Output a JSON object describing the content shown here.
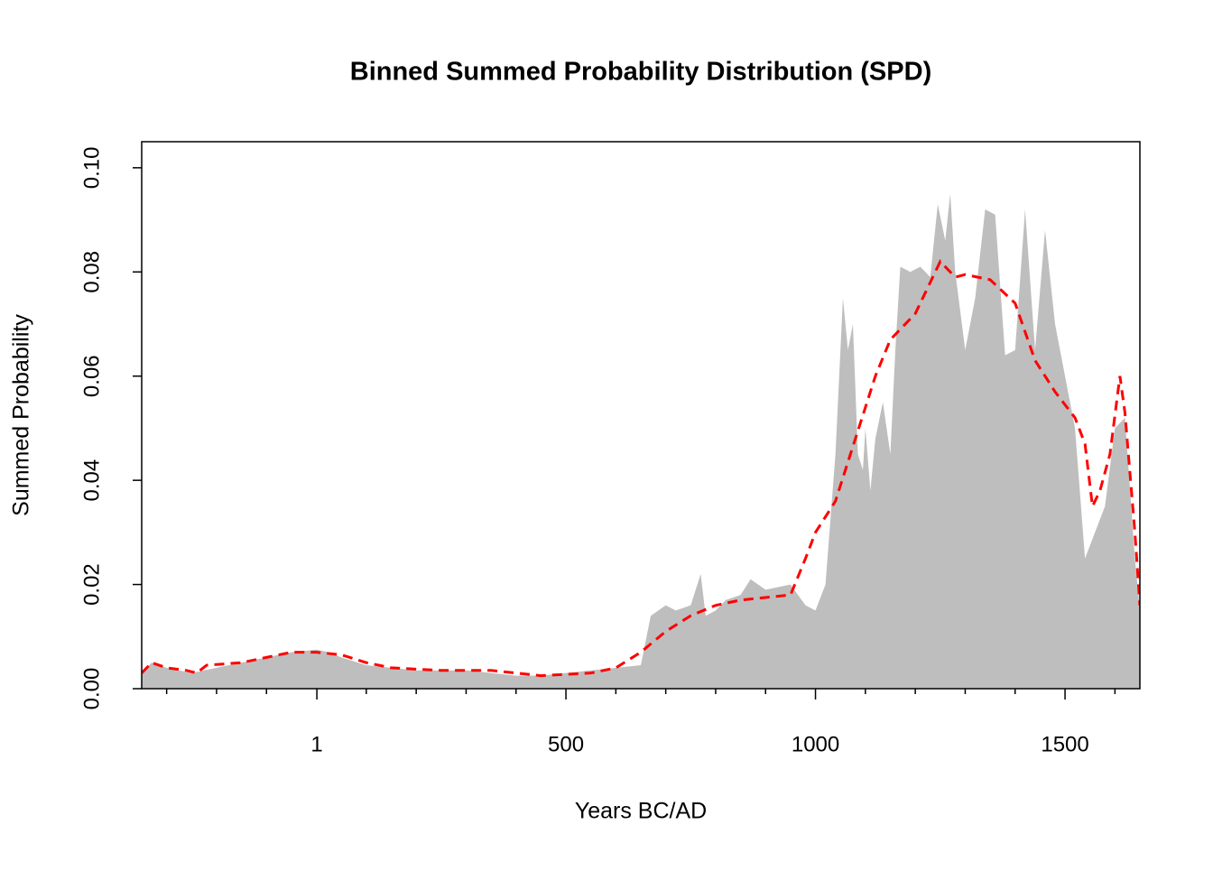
{
  "chart_data": {
    "type": "area",
    "title": "Binned Summed Probability Distribution (SPD)",
    "xlabel": "Years BC/AD",
    "ylabel": "Summed Probability",
    "xlim": [
      -350,
      1650
    ],
    "ylim": [
      0,
      0.105
    ],
    "xticks": [
      1,
      500,
      1000,
      1500
    ],
    "xminorticks": [
      -300,
      -200,
      -100,
      100,
      200,
      300,
      400,
      600,
      700,
      800,
      900,
      1100,
      1200,
      1300,
      1400,
      1600
    ],
    "yticks": [
      {
        "value": 0,
        "label": "0.00"
      },
      {
        "value": 0.02,
        "label": "0.02"
      },
      {
        "value": 0.04,
        "label": "0.04"
      },
      {
        "value": 0.06,
        "label": "0.06"
      },
      {
        "value": 0.08,
        "label": "0.08"
      },
      {
        "value": 0.1,
        "label": "0.10"
      }
    ],
    "series": [
      {
        "type": "area",
        "color": "#bebebe",
        "x": [
          -350,
          -330,
          -300,
          -250,
          -200,
          -150,
          -100,
          -50,
          0,
          25,
          50,
          100,
          150,
          200,
          250,
          300,
          350,
          400,
          450,
          500,
          550,
          600,
          650,
          670,
          700,
          720,
          750,
          770,
          780,
          800,
          820,
          850,
          870,
          900,
          950,
          980,
          1000,
          1020,
          1040,
          1055,
          1065,
          1075,
          1085,
          1095,
          1100,
          1110,
          1120,
          1135,
          1150,
          1160,
          1170,
          1190,
          1210,
          1230,
          1245,
          1260,
          1270,
          1280,
          1300,
          1320,
          1340,
          1360,
          1380,
          1400,
          1420,
          1440,
          1460,
          1480,
          1500,
          1520,
          1540,
          1560,
          1580,
          1600,
          1620,
          1640,
          1650
        ],
        "values": [
          0.003,
          0.005,
          0.004,
          0.003,
          0.004,
          0.005,
          0.006,
          0.007,
          0.0075,
          0.007,
          0.006,
          0.0045,
          0.004,
          0.0035,
          0.0035,
          0.0035,
          0.003,
          0.0025,
          0.0025,
          0.003,
          0.0035,
          0.004,
          0.0045,
          0.014,
          0.016,
          0.015,
          0.016,
          0.022,
          0.014,
          0.015,
          0.017,
          0.018,
          0.021,
          0.019,
          0.02,
          0.016,
          0.015,
          0.02,
          0.045,
          0.075,
          0.065,
          0.07,
          0.045,
          0.042,
          0.05,
          0.038,
          0.048,
          0.055,
          0.045,
          0.065,
          0.081,
          0.08,
          0.081,
          0.079,
          0.093,
          0.086,
          0.095,
          0.08,
          0.065,
          0.075,
          0.092,
          0.091,
          0.064,
          0.065,
          0.092,
          0.065,
          0.088,
          0.07,
          0.06,
          0.05,
          0.025,
          0.03,
          0.035,
          0.05,
          0.052,
          0.025,
          0.015
        ]
      },
      {
        "type": "line",
        "color": "#ff0000",
        "dashed": true,
        "x": [
          -350,
          -330,
          -300,
          -260,
          -240,
          -220,
          -150,
          -50,
          0,
          50,
          100,
          150,
          250,
          350,
          450,
          550,
          600,
          650,
          700,
          750,
          800,
          850,
          900,
          950,
          980,
          1000,
          1040,
          1080,
          1120,
          1150,
          1200,
          1250,
          1280,
          1300,
          1350,
          1400,
          1440,
          1480,
          1520,
          1540,
          1555,
          1570,
          1590,
          1610,
          1620,
          1640,
          1650
        ],
        "values": [
          0.003,
          0.005,
          0.004,
          0.0035,
          0.003,
          0.0045,
          0.005,
          0.007,
          0.007,
          0.0065,
          0.005,
          0.004,
          0.0035,
          0.0035,
          0.0025,
          0.003,
          0.004,
          0.007,
          0.011,
          0.014,
          0.016,
          0.017,
          0.0175,
          0.018,
          0.025,
          0.03,
          0.036,
          0.048,
          0.06,
          0.067,
          0.072,
          0.082,
          0.079,
          0.0795,
          0.0785,
          0.074,
          0.063,
          0.057,
          0.052,
          0.047,
          0.035,
          0.038,
          0.045,
          0.06,
          0.053,
          0.03,
          0.016
        ]
      }
    ]
  }
}
